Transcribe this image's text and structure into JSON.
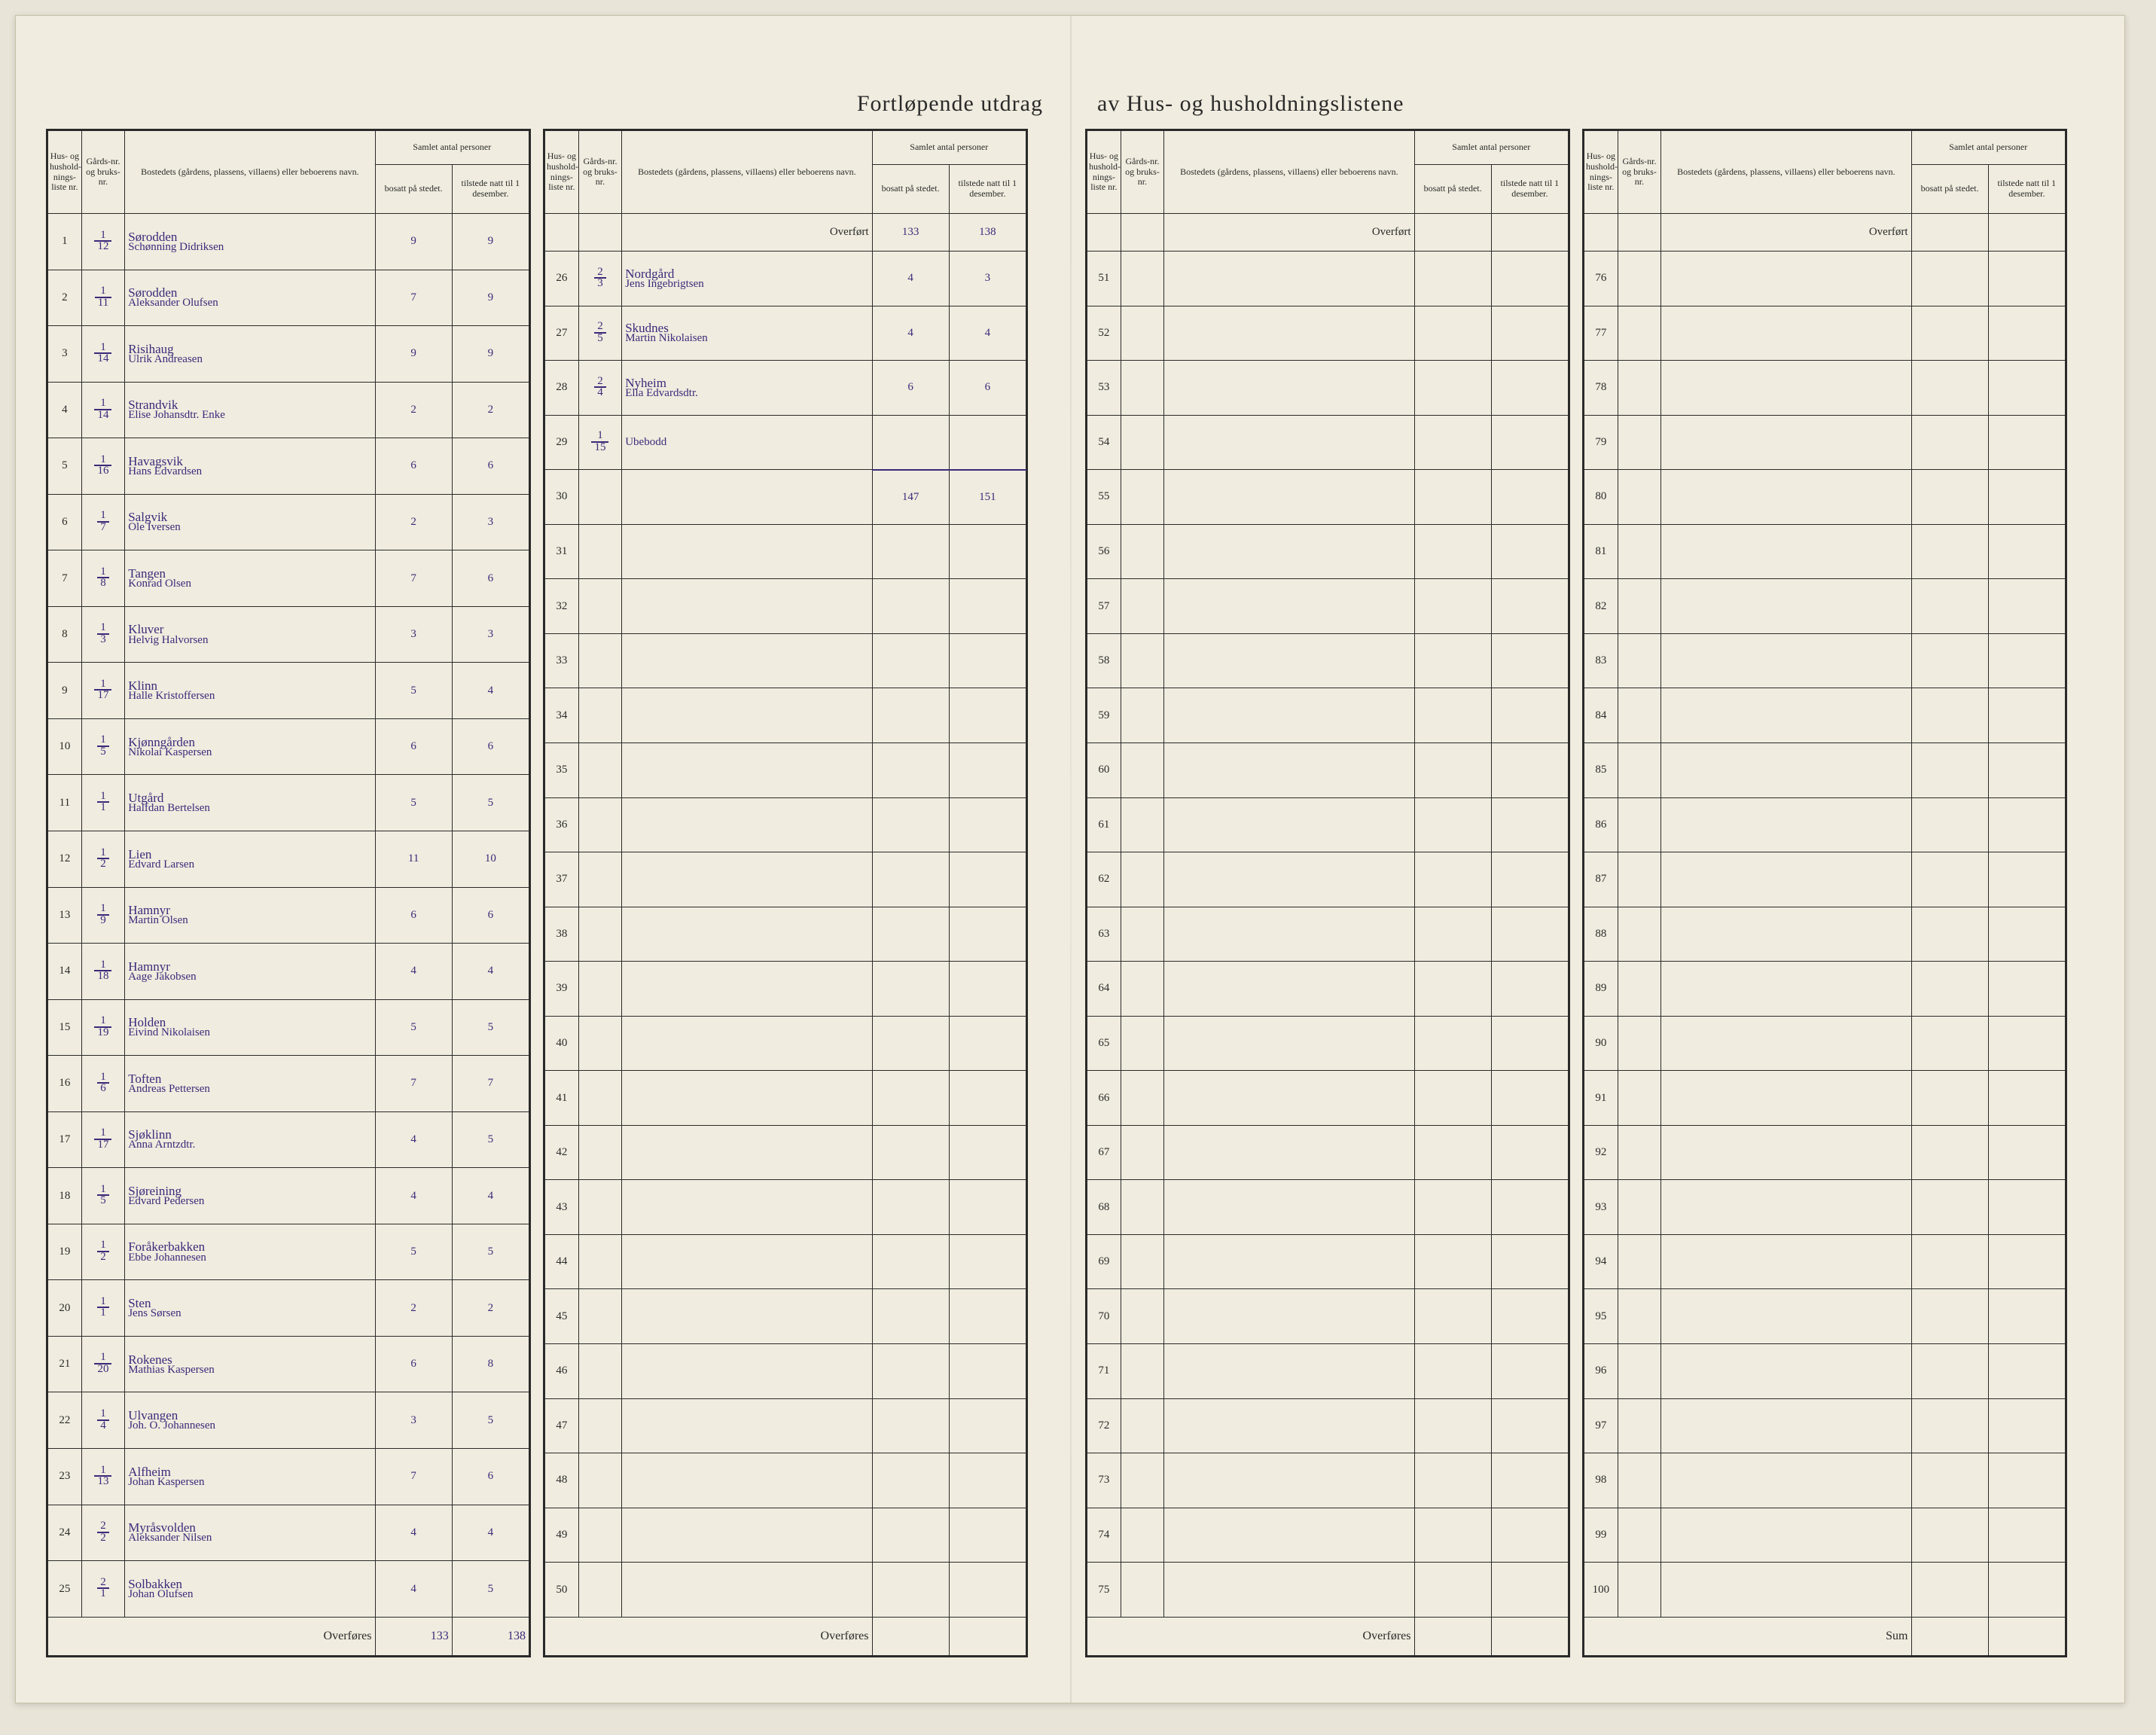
{
  "title_left": "Fortløpende utdrag",
  "title_right": "av Hus- og husholdningslistene",
  "headers": {
    "liste": "Hus- og hushold-nings-liste nr.",
    "gard": "Gårds-nr. og bruks-nr.",
    "navn": "Bostedets (gårdens, plassens, villaens) eller beboerens navn.",
    "samlet": "Samlet antal personer",
    "bosatt": "bosatt på stedet.",
    "tilstede": "tilstede natt til 1 desember."
  },
  "overfort": "Overført",
  "overfores": "Overføres",
  "sum": "Sum",
  "q1": {
    "rows": [
      {
        "n": "1",
        "g_t": "1",
        "g_b": "12",
        "place": "Sørodden",
        "name": "Schønning Didriksen",
        "b": "9",
        "t": "9"
      },
      {
        "n": "2",
        "g_t": "1",
        "g_b": "11",
        "place": "Sørodden",
        "name": "Aleksander Olufsen",
        "b": "7",
        "t": "9"
      },
      {
        "n": "3",
        "g_t": "1",
        "g_b": "14",
        "place": "Risihaug",
        "name": "Ulrik Andreasen",
        "b": "9",
        "t": "9"
      },
      {
        "n": "4",
        "g_t": "1",
        "g_b": "14",
        "place": "Strandvik",
        "name": "Elise Johansdtr. Enke",
        "b": "2",
        "t": "2"
      },
      {
        "n": "5",
        "g_t": "1",
        "g_b": "16",
        "place": "Havagsvik",
        "name": "Hans Edvardsen",
        "b": "6",
        "t": "6"
      },
      {
        "n": "6",
        "g_t": "1",
        "g_b": "7",
        "place": "Salgvik",
        "name": "Ole Iversen",
        "b": "2",
        "t": "3"
      },
      {
        "n": "7",
        "g_t": "1",
        "g_b": "8",
        "place": "Tangen",
        "name": "Konrad Olsen",
        "b": "7",
        "t": "6"
      },
      {
        "n": "8",
        "g_t": "1",
        "g_b": "3",
        "place": "Kluver",
        "name": "Helvig Halvorsen",
        "b": "3",
        "t": "3"
      },
      {
        "n": "9",
        "g_t": "1",
        "g_b": "17",
        "place": "Klinn",
        "name": "Halle Kristoffersen",
        "b": "5",
        "t": "4"
      },
      {
        "n": "10",
        "g_t": "1",
        "g_b": "5",
        "place": "Kjønngården",
        "name": "Nikolai Kaspersen",
        "b": "6",
        "t": "6"
      },
      {
        "n": "11",
        "g_t": "1",
        "g_b": "1",
        "place": "Utgård",
        "name": "Halfdan Bertelsen",
        "b": "5",
        "t": "5"
      },
      {
        "n": "12",
        "g_t": "1",
        "g_b": "2",
        "place": "Lien",
        "name": "Edvard Larsen",
        "b": "11",
        "t": "10"
      },
      {
        "n": "13",
        "g_t": "1",
        "g_b": "9",
        "place": "Hamnyr",
        "name": "Martin Olsen",
        "b": "6",
        "t": "6"
      },
      {
        "n": "14",
        "g_t": "1",
        "g_b": "18",
        "place": "Hamnyr",
        "name": "Aage Jakobsen",
        "b": "4",
        "t": "4"
      },
      {
        "n": "15",
        "g_t": "1",
        "g_b": "19",
        "place": "Holden",
        "name": "Eivind Nikolaisen",
        "b": "5",
        "t": "5"
      },
      {
        "n": "16",
        "g_t": "1",
        "g_b": "6",
        "place": "Toften",
        "name": "Andreas Pettersen",
        "b": "7",
        "t": "7"
      },
      {
        "n": "17",
        "g_t": "1",
        "g_b": "17",
        "place": "Sjøklinn",
        "name": "Anna Arntzdtr.",
        "b": "4",
        "t": "5"
      },
      {
        "n": "18",
        "g_t": "1",
        "g_b": "5",
        "place": "Sjøreining",
        "name": "Edvard Pedersen",
        "b": "4",
        "t": "4"
      },
      {
        "n": "19",
        "g_t": "1",
        "g_b": "2",
        "place": "Foråkerbakken",
        "name": "Ebbe Johannesen",
        "b": "5",
        "t": "5"
      },
      {
        "n": "20",
        "g_t": "1",
        "g_b": "1",
        "place": "Sten",
        "name": "Jens Sørsen",
        "b": "2",
        "t": "2"
      },
      {
        "n": "21",
        "g_t": "1",
        "g_b": "20",
        "place": "Rokenes",
        "name": "Mathias Kaspersen",
        "b": "6",
        "t": "8"
      },
      {
        "n": "22",
        "g_t": "1",
        "g_b": "4",
        "place": "Ulvangen",
        "name": "Joh. O. Johannesen",
        "b": "3",
        "t": "5"
      },
      {
        "n": "23",
        "g_t": "1",
        "g_b": "13",
        "place": "Alfheim",
        "name": "Johan Kaspersen",
        "b": "7",
        "t": "6"
      },
      {
        "n": "24",
        "g_t": "2",
        "g_b": "2",
        "place": "Myråsvolden",
        "name": "Aleksander Nilsen",
        "b": "4",
        "t": "4"
      },
      {
        "n": "25",
        "g_t": "2",
        "g_b": "1",
        "place": "Solbakken",
        "name": "Johan Olufsen",
        "b": "4",
        "t": "5"
      }
    ],
    "footer_b": "133",
    "footer_t": "138"
  },
  "q2": {
    "overfort_b": "133",
    "overfort_t": "138",
    "rows": [
      {
        "n": "26",
        "g_t": "2",
        "g_b": "3",
        "place": "Nordgård",
        "name": "Jens Ingebrigtsen",
        "b": "4",
        "t": "3"
      },
      {
        "n": "27",
        "g_t": "2",
        "g_b": "5",
        "place": "Skudnes",
        "name": "Martin Nikolaisen",
        "b": "4",
        "t": "4"
      },
      {
        "n": "28",
        "g_t": "2",
        "g_b": "4",
        "place": "Nyheim",
        "name": "Ella Edvardsdtr.",
        "b": "6",
        "t": "6"
      },
      {
        "n": "29",
        "g_t": "1",
        "g_b": "15",
        "place": "",
        "name": "Ubebodd",
        "b": "",
        "t": ""
      },
      {
        "n": "30",
        "g_t": "",
        "g_b": "",
        "place": "",
        "name": "",
        "b": "",
        "t": ""
      },
      {
        "n": "31",
        "g_t": "",
        "g_b": "",
        "place": "",
        "name": "",
        "b": "",
        "t": ""
      },
      {
        "n": "32",
        "g_t": "",
        "g_b": "",
        "place": "",
        "name": "",
        "b": "",
        "t": ""
      },
      {
        "n": "33",
        "g_t": "",
        "g_b": "",
        "place": "",
        "name": "",
        "b": "",
        "t": ""
      },
      {
        "n": "34",
        "g_t": "",
        "g_b": "",
        "place": "",
        "name": "",
        "b": "",
        "t": ""
      },
      {
        "n": "35",
        "g_t": "",
        "g_b": "",
        "place": "",
        "name": "",
        "b": "",
        "t": ""
      },
      {
        "n": "36",
        "g_t": "",
        "g_b": "",
        "place": "",
        "name": "",
        "b": "",
        "t": ""
      },
      {
        "n": "37",
        "g_t": "",
        "g_b": "",
        "place": "",
        "name": "",
        "b": "",
        "t": ""
      },
      {
        "n": "38",
        "g_t": "",
        "g_b": "",
        "place": "",
        "name": "",
        "b": "",
        "t": ""
      },
      {
        "n": "39",
        "g_t": "",
        "g_b": "",
        "place": "",
        "name": "",
        "b": "",
        "t": ""
      },
      {
        "n": "40",
        "g_t": "",
        "g_b": "",
        "place": "",
        "name": "",
        "b": "",
        "t": ""
      },
      {
        "n": "41",
        "g_t": "",
        "g_b": "",
        "place": "",
        "name": "",
        "b": "",
        "t": ""
      },
      {
        "n": "42",
        "g_t": "",
        "g_b": "",
        "place": "",
        "name": "",
        "b": "",
        "t": ""
      },
      {
        "n": "43",
        "g_t": "",
        "g_b": "",
        "place": "",
        "name": "",
        "b": "",
        "t": ""
      },
      {
        "n": "44",
        "g_t": "",
        "g_b": "",
        "place": "",
        "name": "",
        "b": "",
        "t": ""
      },
      {
        "n": "45",
        "g_t": "",
        "g_b": "",
        "place": "",
        "name": "",
        "b": "",
        "t": ""
      },
      {
        "n": "46",
        "g_t": "",
        "g_b": "",
        "place": "",
        "name": "",
        "b": "",
        "t": ""
      },
      {
        "n": "47",
        "g_t": "",
        "g_b": "",
        "place": "",
        "name": "",
        "b": "",
        "t": ""
      },
      {
        "n": "48",
        "g_t": "",
        "g_b": "",
        "place": "",
        "name": "",
        "b": "",
        "t": ""
      },
      {
        "n": "49",
        "g_t": "",
        "g_b": "",
        "place": "",
        "name": "",
        "b": "",
        "t": ""
      },
      {
        "n": "50",
        "g_t": "",
        "g_b": "",
        "place": "",
        "name": "",
        "b": "",
        "t": ""
      }
    ],
    "total_row": {
      "n": "30",
      "b": "147",
      "t": "151"
    }
  },
  "q3": {
    "start": 51,
    "end": 75
  },
  "q4": {
    "start": 76,
    "end": 100
  }
}
